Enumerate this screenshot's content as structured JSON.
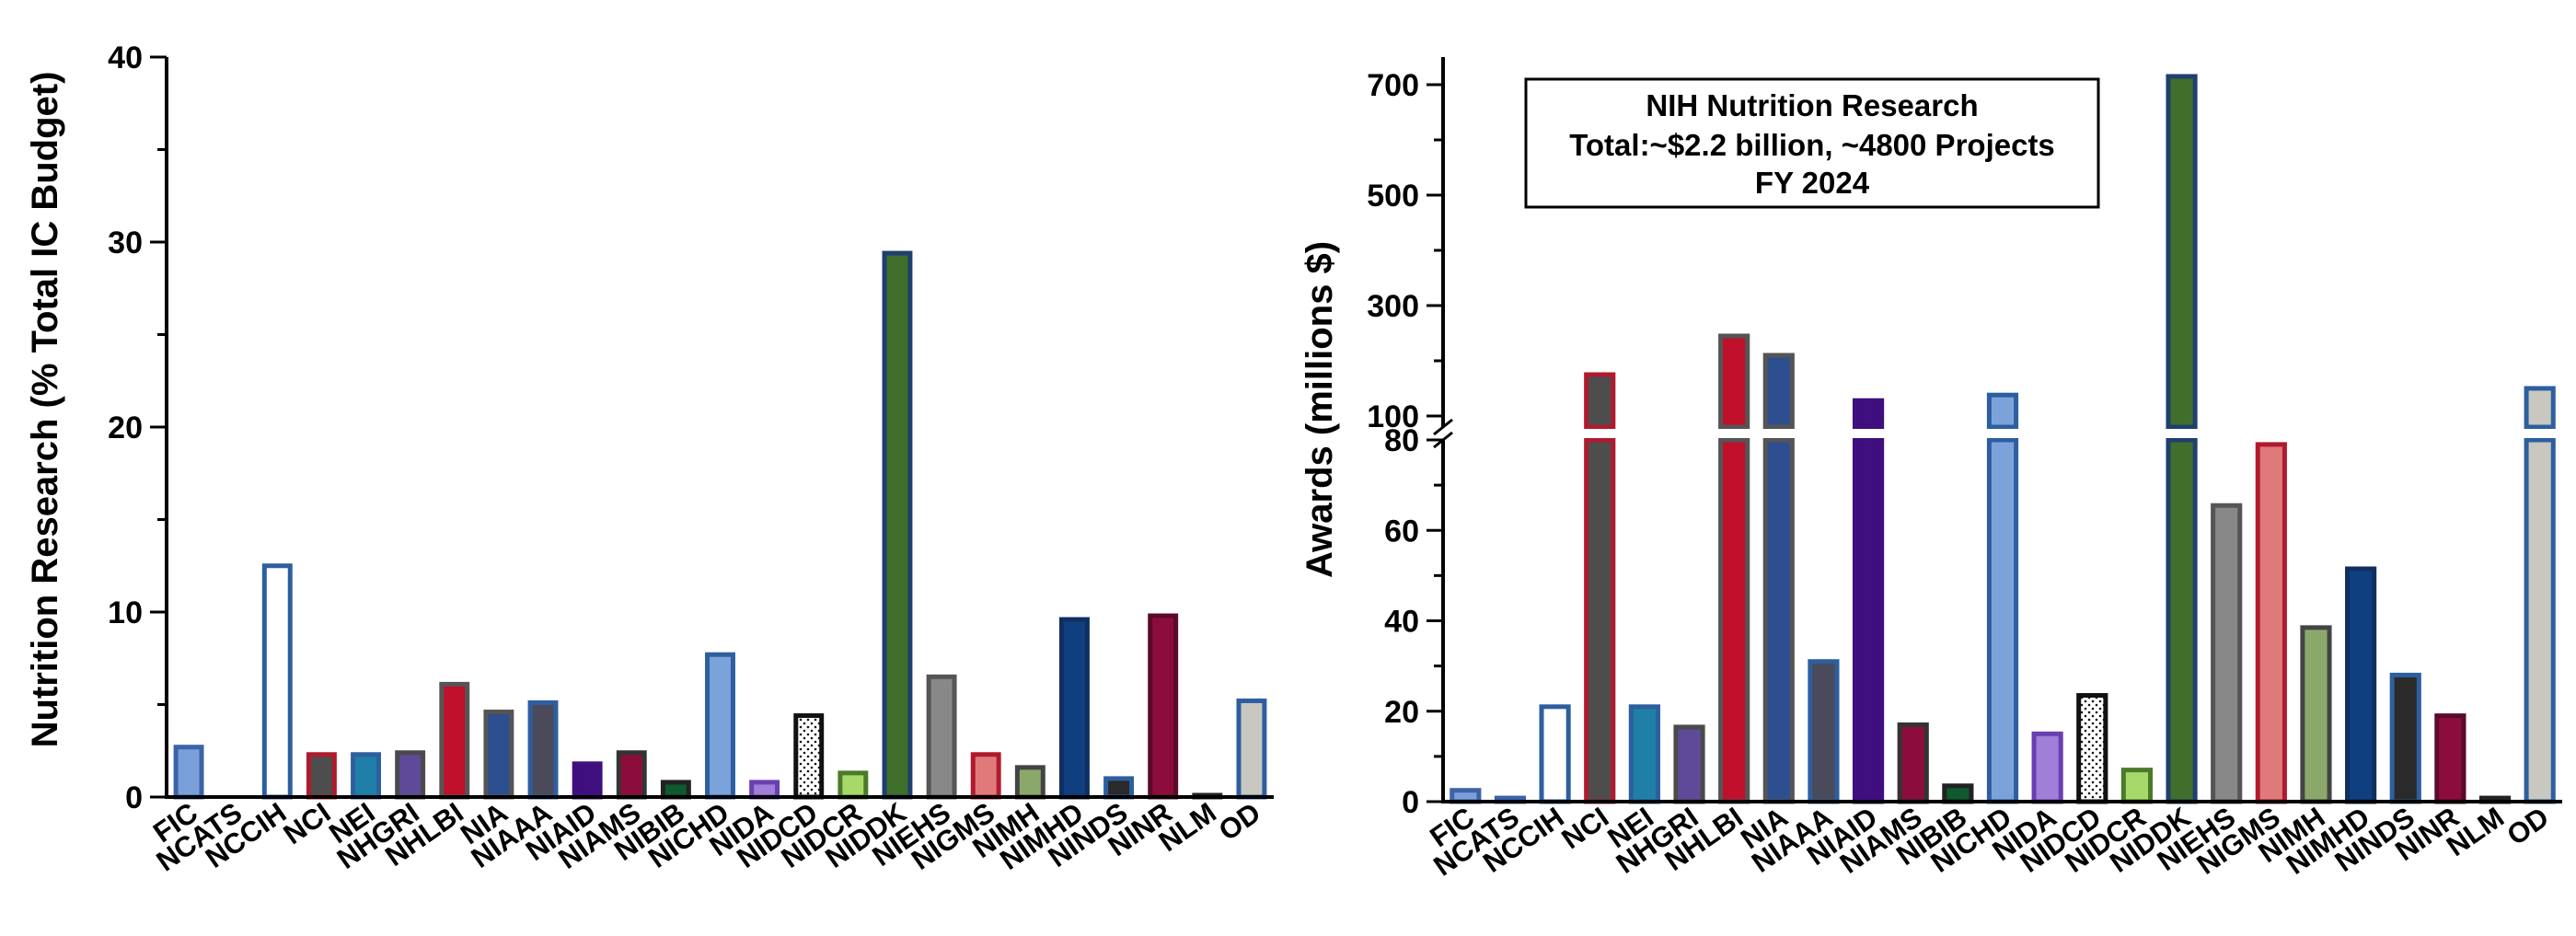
{
  "chart_data": [
    {
      "type": "bar",
      "ylabel": "Nutrition Research (% Total IC Budget)",
      "xlabel": "",
      "ylim": [
        0,
        40
      ],
      "yticks": [
        0,
        10,
        20,
        30,
        40
      ],
      "grid": false,
      "categories": [
        "FIC",
        "NCATS",
        "NCCIH",
        "NCI",
        "NEI",
        "NHGRI",
        "NHLBI",
        "NIA",
        "NIAAA",
        "NIAID",
        "NIAMS",
        "NIBIB",
        "NICHD",
        "NIDA",
        "NIDCD",
        "NIDCR",
        "NIDDK",
        "NIEHS",
        "NIGMS",
        "NIMH",
        "NIMHD",
        "NINDS",
        "NINR",
        "NLM",
        "OD"
      ],
      "values": [
        2.7,
        0.0,
        12.5,
        2.3,
        2.3,
        2.4,
        6.1,
        4.6,
        5.1,
        1.8,
        2.4,
        0.8,
        7.7,
        0.8,
        4.4,
        1.3,
        29.4,
        6.5,
        2.3,
        1.6,
        9.6,
        1.0,
        9.8,
        0.1,
        5.2
      ]
    },
    {
      "type": "bar",
      "title_box": [
        "NIH Nutrition Research",
        "Total:~$2.2 billion, ~4800 Projects",
        "FY 2024"
      ],
      "ylabel": "Awards (millions $)",
      "xlabel": "",
      "broken_axis": true,
      "ylim_lower": [
        0,
        80
      ],
      "ylim_upper": [
        80,
        750
      ],
      "yticks_lower": [
        0,
        20,
        40,
        60,
        80
      ],
      "yticks_upper": [
        100,
        300,
        500,
        700
      ],
      "grid": false,
      "categories": [
        "FIC",
        "NCATS",
        "NCCIH",
        "NCI",
        "NEI",
        "NHGRI",
        "NHLBI",
        "NIA",
        "NIAAA",
        "NIAID",
        "NIAMS",
        "NIBIB",
        "NICHD",
        "NIDA",
        "NIDCD",
        "NIDCR",
        "NIDDK",
        "NIEHS",
        "NIGMS",
        "NIMH",
        "NIMHD",
        "NINDS",
        "NINR",
        "NLM",
        "OD"
      ],
      "values": [
        2.5,
        0.8,
        21,
        175,
        21,
        16.5,
        245,
        210,
        31,
        128,
        17,
        3.5,
        138,
        15,
        23.5,
        7,
        715,
        65.5,
        79,
        38.5,
        51.5,
        28,
        19,
        0.8,
        150
      ]
    }
  ],
  "bar_styles": [
    {
      "fill": "#7b9fd8",
      "stroke": "#3b63a8",
      "pattern": "solid"
    },
    {
      "fill": "#8a5fc0",
      "stroke": "#3b63a8",
      "pattern": "solid"
    },
    {
      "fill": "#ffffff",
      "stroke": "#2d5fa0",
      "pattern": "solid"
    },
    {
      "fill": "#4d4d4d",
      "stroke": "#b01a2e",
      "pattern": "solid"
    },
    {
      "fill": "#1f7fa6",
      "stroke": "#2d5fa0",
      "pattern": "solid"
    },
    {
      "fill": "#5f4a9a",
      "stroke": "#4a4a4a",
      "pattern": "solid"
    },
    {
      "fill": "#c0102b",
      "stroke": "#555555",
      "pattern": "solid"
    },
    {
      "fill": "#2e4f8f",
      "stroke": "#555555",
      "pattern": "solid"
    },
    {
      "fill": "#4a4a5a",
      "stroke": "#2d5fa0",
      "pattern": "solid"
    },
    {
      "fill": "#3f0f7f",
      "stroke": "#3f0f7f",
      "pattern": "solid"
    },
    {
      "fill": "#8c0d3c",
      "stroke": "#333333",
      "pattern": "solid"
    },
    {
      "fill": "#0f5a2e",
      "stroke": "#222222",
      "pattern": "solid"
    },
    {
      "fill": "#7ba3da",
      "stroke": "#2d5fa0",
      "pattern": "solid"
    },
    {
      "fill": "#9f7fd8",
      "stroke": "#6a3fb0",
      "pattern": "solid"
    },
    {
      "fill": "#ffffff",
      "stroke": "#111111",
      "pattern": "dots"
    },
    {
      "fill": "#a6d96a",
      "stroke": "#4a7a2a",
      "pattern": "solid"
    },
    {
      "fill": "#3f6f2a",
      "stroke": "#1f3f6f",
      "pattern": "solid"
    },
    {
      "fill": "#888888",
      "stroke": "#555555",
      "pattern": "solid"
    },
    {
      "fill": "#e07a7a",
      "stroke": "#b01a2e",
      "pattern": "solid"
    },
    {
      "fill": "#8aa86a",
      "stroke": "#444444",
      "pattern": "solid"
    },
    {
      "fill": "#0f3f7f",
      "stroke": "#0f2f5f",
      "pattern": "solid"
    },
    {
      "fill": "#2a2a2a",
      "stroke": "#2d5fa0",
      "pattern": "solid"
    },
    {
      "fill": "#8c0d3c",
      "stroke": "#5a0a2a",
      "pattern": "solid"
    },
    {
      "fill": "#222222",
      "stroke": "#222222",
      "pattern": "solid"
    },
    {
      "fill": "#c8c8c0",
      "stroke": "#2d5fa0",
      "pattern": "solid"
    }
  ]
}
